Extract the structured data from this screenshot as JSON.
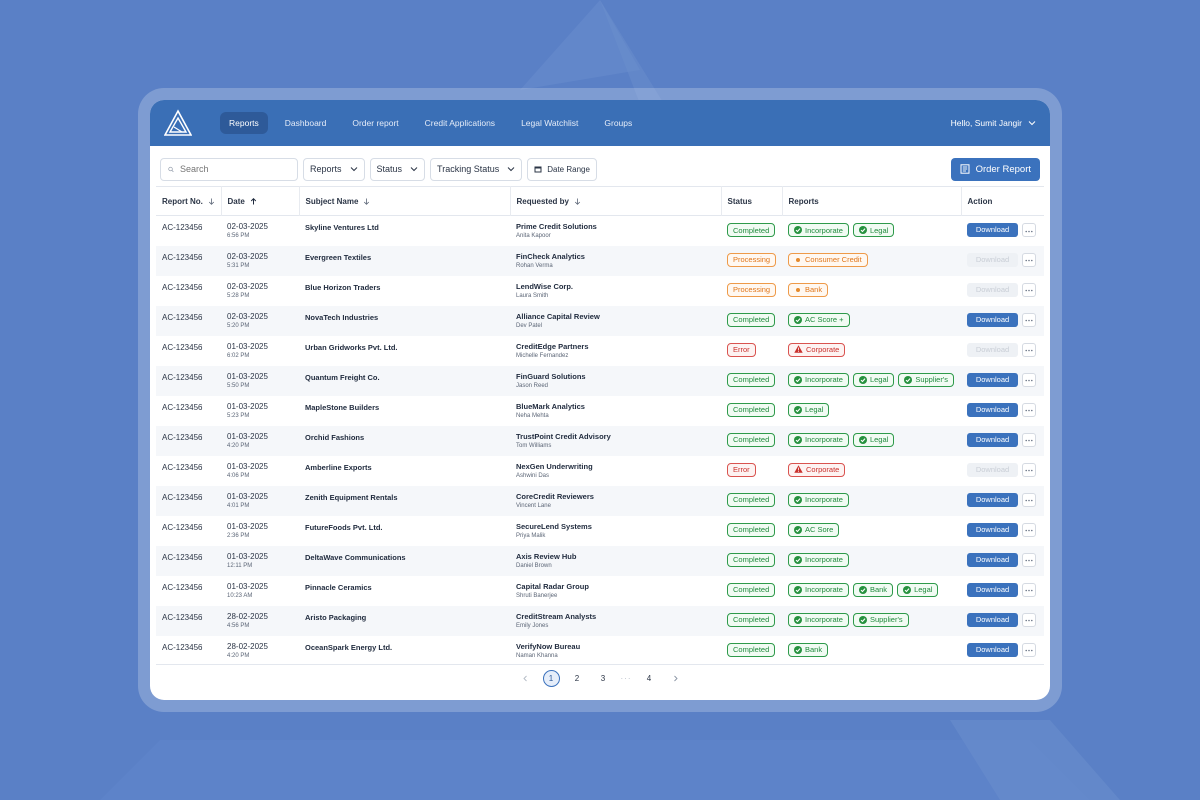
{
  "nav": {
    "tabs": [
      {
        "label": "Reports",
        "active": true
      },
      {
        "label": "Dashboard",
        "active": false
      },
      {
        "label": "Order report",
        "active": false
      },
      {
        "label": "Credit Applications",
        "active": false
      },
      {
        "label": "Legal Watchlist",
        "active": false
      },
      {
        "label": "Groups",
        "active": false
      }
    ],
    "user_greeting": "Hello, Sumit Jangir"
  },
  "toolbar": {
    "search_placeholder": "Search",
    "filters": [
      "Reports",
      "Status",
      "Tracking Status"
    ],
    "date_range_label": "Date Range",
    "order_button_label": "Order Report"
  },
  "table": {
    "columns": [
      "Report No.",
      "Date",
      "Subject Name",
      "Requested by",
      "Status",
      "Reports",
      "Action"
    ],
    "download_label": "Download",
    "rows": [
      {
        "report_no": "AC-123456",
        "date": "02-03-2025",
        "time": "6:56 PM",
        "subject": "Skyline Ventures Ltd",
        "requester": "Prime Credit Solutions",
        "requester_person": "Anita Kapoor",
        "status": "Completed",
        "reports": [
          "Incorporate",
          "Legal"
        ]
      },
      {
        "report_no": "AC-123456",
        "date": "02-03-2025",
        "time": "5:31 PM",
        "subject": "Evergreen Textiles",
        "requester": "FinCheck Analytics",
        "requester_person": "Rohan Verma",
        "status": "Processing",
        "reports": [
          "Consumer Credit"
        ]
      },
      {
        "report_no": "AC-123456",
        "date": "02-03-2025",
        "time": "5:28 PM",
        "subject": "Blue Horizon Traders",
        "requester": "LendWise Corp.",
        "requester_person": "Laura Smith",
        "status": "Processing",
        "reports": [
          "Bank"
        ]
      },
      {
        "report_no": "AC-123456",
        "date": "02-03-2025",
        "time": "5:20 PM",
        "subject": "NovaTech Industries",
        "requester": "Alliance Capital Review",
        "requester_person": "Dev Patel",
        "status": "Completed",
        "reports": [
          "AC Score +"
        ]
      },
      {
        "report_no": "AC-123456",
        "date": "01-03-2025",
        "time": "6:02 PM",
        "subject": "Urban Gridworks Pvt. Ltd.",
        "requester": "CreditEdge Partners",
        "requester_person": "Michelle Fernandez",
        "status": "Error",
        "reports": [
          "Corporate"
        ]
      },
      {
        "report_no": "AC-123456",
        "date": "01-03-2025",
        "time": "5:50 PM",
        "subject": "Quantum Freight Co.",
        "requester": "FinGuard Solutions",
        "requester_person": "Jason Reed",
        "status": "Completed",
        "reports": [
          "Incorporate",
          "Legal",
          "Supplier's"
        ]
      },
      {
        "report_no": "AC-123456",
        "date": "01-03-2025",
        "time": "5:23 PM",
        "subject": "MapleStone Builders",
        "requester": "BlueMark Analytics",
        "requester_person": "Neha Mehta",
        "status": "Completed",
        "reports": [
          "Legal"
        ]
      },
      {
        "report_no": "AC-123456",
        "date": "01-03-2025",
        "time": "4:20 PM",
        "subject": "Orchid Fashions",
        "requester": "TrustPoint Credit Advisory",
        "requester_person": "Tom Williams",
        "status": "Completed",
        "reports": [
          "Incorporate",
          "Legal"
        ]
      },
      {
        "report_no": "AC-123456",
        "date": "01-03-2025",
        "time": "4:06 PM",
        "subject": "Amberline Exports",
        "requester": "NexGen Underwriting",
        "requester_person": "Ashwini Das",
        "status": "Error",
        "reports": [
          "Corporate"
        ]
      },
      {
        "report_no": "AC-123456",
        "date": "01-03-2025",
        "time": "4:01 PM",
        "subject": "Zenith Equipment Rentals",
        "requester": "CoreCredit Reviewers",
        "requester_person": "Vincent Lane",
        "status": "Completed",
        "reports": [
          "Incorporate"
        ]
      },
      {
        "report_no": "AC-123456",
        "date": "01-03-2025",
        "time": "2:36 PM",
        "subject": "FutureFoods Pvt. Ltd.",
        "requester": "SecureLend Systems",
        "requester_person": "Priya Malik",
        "status": "Completed",
        "reports": [
          "AC Sore"
        ]
      },
      {
        "report_no": "AC-123456",
        "date": "01-03-2025",
        "time": "12:11 PM",
        "subject": "DeltaWave Communications",
        "requester": "Axis Review Hub",
        "requester_person": "Daniel Brown",
        "status": "Completed",
        "reports": [
          "Incorporate"
        ]
      },
      {
        "report_no": "AC-123456",
        "date": "01-03-2025",
        "time": "10:23 AM",
        "subject": "Pinnacle Ceramics",
        "requester": "Capital Radar Group",
        "requester_person": "Shruti Banerjee",
        "status": "Completed",
        "reports": [
          "Incorporate",
          "Bank",
          "Legal"
        ]
      },
      {
        "report_no": "AC-123456",
        "date": "28-02-2025",
        "time": "4:56 PM",
        "subject": "Aristo Packaging",
        "requester": "CreditStream Analysts",
        "requester_person": "Emily Jones",
        "status": "Completed",
        "reports": [
          "Incorporate",
          "Supplier's"
        ]
      },
      {
        "report_no": "AC-123456",
        "date": "28-02-2025",
        "time": "4:20 PM",
        "subject": "OceanSpark Energy Ltd.",
        "requester": "VerifyNow Bureau",
        "requester_person": "Naman Khanna",
        "status": "Completed",
        "reports": [
          "Bank"
        ]
      }
    ]
  },
  "pagination": {
    "pages": [
      "1",
      "2",
      "3",
      "4"
    ],
    "current": "1",
    "ellipsis": "···"
  },
  "colors": {
    "primary": "#3b72bd",
    "nav_bg": "#3a6fb6",
    "completed": "#1f8a3c",
    "processing": "#e0761a",
    "error": "#c9302c"
  }
}
